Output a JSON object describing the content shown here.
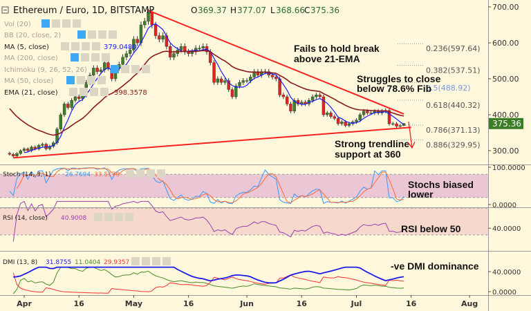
{
  "header": {
    "symbol": "Ethereum / Euro, 1D, BITSTAMP",
    "open_label": "O",
    "open": "369.37",
    "high_label": "H",
    "high": "377.07",
    "low_label": "L",
    "low": "368.66",
    "close_label": "C",
    "close": "375.36"
  },
  "legend": {
    "vol": "Vol (20)",
    "bb": "BB (20, close, 2)",
    "ma5": "MA (5, close)",
    "ma5_value": "379.0480",
    "ma200": "MA (200, close)",
    "ichimoku": "Ichimoku (9, 26, 52, 26)",
    "ma50": "MA (50, close)",
    "ema21": "EMA (21, close)",
    "ema21_value": "398.3578",
    "stoch": "Stoch (14, 3, 1)",
    "stoch_k": "26.7694",
    "stoch_d": "33.5179",
    "rsi": "RSI (14, close)",
    "rsi_value": "40.9008",
    "dmi": "DMI (13, 8)",
    "dmi_adx": "31.8755",
    "dmi_plus": "11.0404",
    "dmi_minus": "29.9357"
  },
  "annotations": {
    "a1_l1": "Fails to hold break",
    "a1_l2": "above 21-EMA",
    "a2_l1": "Struggles to close",
    "a2_l2": "below 78.6% Fib",
    "a3_l1": "Strong trendline",
    "a3_l2": "support at 360",
    "a4_l1": "Stochs biased",
    "a4_l2": "lower",
    "a5": "RSI below 50",
    "a6": "-ve DMI dominance"
  },
  "colors": {
    "background": "#fff8dc",
    "up": "#3f7d2b",
    "down": "#e3231e",
    "ma5": "#1a1aff",
    "ema21": "#8b1a1a",
    "trendline": "#ff2020",
    "stoch_k": "#3399ff",
    "stoch_d": "#ff6a33",
    "rsi": "#9b3fb0",
    "adx": "#1a1aee",
    "plus_di": "#4a8a2a",
    "minus_di": "#ff3030",
    "last_price_bg": "#3b7d22"
  },
  "chart_data": {
    "type": "candlestick",
    "start_date": "2018-03-28",
    "close": [
      290,
      285,
      292,
      300,
      305,
      300,
      310,
      305,
      315,
      318,
      305,
      312,
      322,
      360,
      400,
      430,
      420,
      440,
      450,
      445,
      455,
      490,
      510,
      530,
      520,
      525,
      545,
      530,
      500,
      530,
      540,
      560,
      570,
      580,
      610,
      600,
      650,
      660,
      685,
      650,
      620,
      610,
      620,
      590,
      560,
      570,
      580,
      590,
      575,
      570,
      575,
      585,
      585,
      590,
      575,
      545,
      490,
      500,
      490,
      495,
      470,
      450,
      480,
      490,
      495,
      495,
      505,
      520,
      510,
      520,
      520,
      510,
      505,
      500,
      455,
      450,
      430,
      410,
      440,
      430,
      435,
      430,
      440,
      450,
      455,
      450,
      400,
      405,
      395,
      390,
      375,
      380,
      370,
      375,
      380,
      385,
      400,
      410,
      405,
      405,
      410,
      405,
      410,
      412,
      375,
      375,
      368,
      369.37,
      375.36
    ],
    "price_axis": {
      "ticks": [
        "700.00",
        "600.00",
        "500.00",
        "400.00",
        "300.00"
      ],
      "values": [
        700,
        600,
        500,
        400,
        300
      ],
      "last_price": "375.36"
    },
    "x_ticks": [
      {
        "label": "Apr",
        "date": "2018-04-01"
      },
      {
        "label": "16",
        "date": "2018-04-16"
      },
      {
        "label": "May",
        "date": "2018-05-01"
      },
      {
        "label": "16",
        "date": "2018-05-16"
      },
      {
        "label": "Jun",
        "date": "2018-06-01"
      },
      {
        "label": "16",
        "date": "2018-06-16"
      },
      {
        "label": "Jul",
        "date": "2018-07-01"
      },
      {
        "label": "16",
        "date": "2018-07-16"
      },
      {
        "label": "Aug",
        "date": "2018-08-01"
      }
    ],
    "fib_levels": [
      {
        "label": "0.236(597.64)",
        "value": 597.64
      },
      {
        "label": "0.382(537.51)",
        "value": 537.51
      },
      {
        "label": "0.5(488.92)",
        "value": 488.92
      },
      {
        "label": "0.618(440.32)",
        "value": 440.32
      },
      {
        "label": "0.786(371.13)",
        "value": 371.13
      },
      {
        "label": "0.886(329.95)",
        "value": 329.95
      }
    ],
    "trendlines": [
      {
        "name": "resistance",
        "from": {
          "date": "2018-05-05",
          "price": 690
        },
        "to": {
          "date": "2018-07-14",
          "price": 402
        }
      },
      {
        "name": "support",
        "from": {
          "date": "2018-03-29",
          "price": 280
        },
        "to": {
          "date": "2018-07-16",
          "price": 365
        }
      }
    ],
    "stoch_axis": {
      "ticks": [
        "100.0000",
        "0.0000"
      ],
      "bands": [
        80,
        20
      ]
    },
    "rsi_axis": {
      "ticks": [
        "40.0000"
      ],
      "bands": [
        70,
        30
      ]
    },
    "dmi_axis": {
      "ticks": [
        "40.0000",
        "0.0000"
      ]
    }
  }
}
